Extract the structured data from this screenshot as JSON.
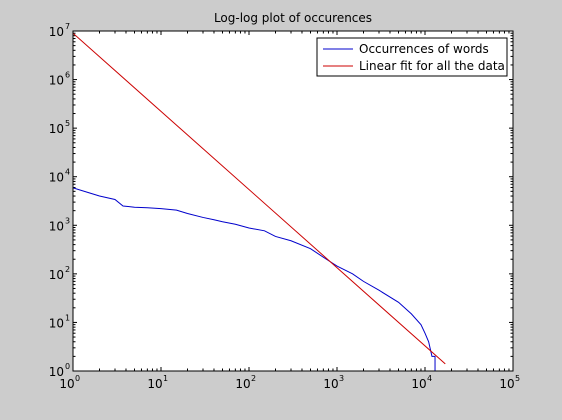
{
  "chart_data": {
    "type": "line",
    "title": "Log-log plot of occurences",
    "xlabel": "",
    "ylabel": "",
    "xscale": "log",
    "yscale": "log",
    "xlim": [
      1,
      100000
    ],
    "ylim": [
      1,
      10000000
    ],
    "grid": false,
    "legend_position": "top-right",
    "x_tick_labels": [
      {
        "base": "10",
        "exp": "0"
      },
      {
        "base": "10",
        "exp": "1"
      },
      {
        "base": "10",
        "exp": "2"
      },
      {
        "base": "10",
        "exp": "3"
      },
      {
        "base": "10",
        "exp": "4"
      },
      {
        "base": "10",
        "exp": "5"
      }
    ],
    "y_tick_labels": [
      {
        "base": "10",
        "exp": "0"
      },
      {
        "base": "10",
        "exp": "1"
      },
      {
        "base": "10",
        "exp": "2"
      },
      {
        "base": "10",
        "exp": "3"
      },
      {
        "base": "10",
        "exp": "4"
      },
      {
        "base": "10",
        "exp": "5"
      },
      {
        "base": "10",
        "exp": "6"
      },
      {
        "base": "10",
        "exp": "7"
      }
    ],
    "series": [
      {
        "name": "Occurrences of words",
        "color": "#0000cc",
        "points": [
          [
            1,
            5900
          ],
          [
            1.5,
            4700
          ],
          [
            2,
            4000
          ],
          [
            3,
            3400
          ],
          [
            3.7,
            2500
          ],
          [
            5,
            2350
          ],
          [
            7,
            2300
          ],
          [
            10,
            2200
          ],
          [
            15,
            2050
          ],
          [
            20,
            1750
          ],
          [
            30,
            1450
          ],
          [
            40,
            1300
          ],
          [
            50,
            1180
          ],
          [
            70,
            1050
          ],
          [
            100,
            880
          ],
          [
            150,
            770
          ],
          [
            200,
            590
          ],
          [
            300,
            480
          ],
          [
            500,
            330
          ],
          [
            700,
            220
          ],
          [
            1000,
            145
          ],
          [
            1500,
            100
          ],
          [
            2000,
            70
          ],
          [
            3000,
            46
          ],
          [
            5000,
            26
          ],
          [
            7000,
            15
          ],
          [
            9000,
            9
          ],
          [
            10000,
            6
          ],
          [
            11000,
            4
          ],
          [
            12000,
            2
          ],
          [
            13000,
            2
          ],
          [
            13000,
            1
          ]
        ]
      },
      {
        "name": "Linear fit for all the data",
        "color": "#cc0000",
        "points": [
          [
            1,
            9000000
          ],
          [
            17000,
            1.4
          ]
        ]
      }
    ]
  }
}
